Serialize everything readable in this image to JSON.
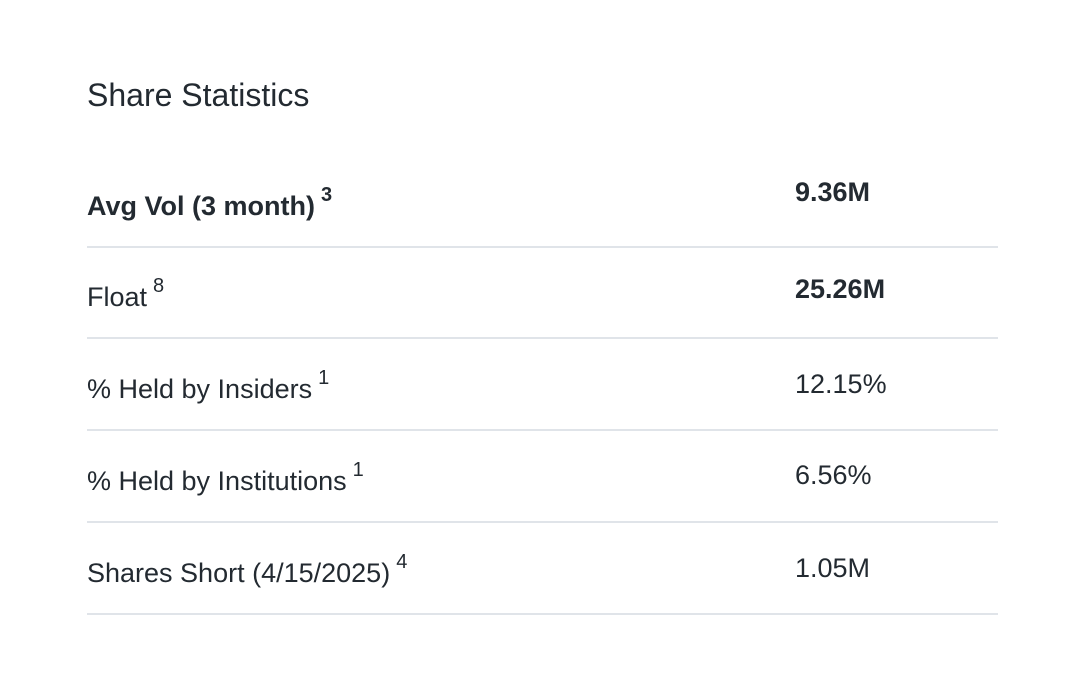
{
  "section_title": "Share Statistics",
  "rows": [
    {
      "label": "Avg Vol (3 month)",
      "footnote": "3",
      "value": "9.36M"
    },
    {
      "label": "Float",
      "footnote": "8",
      "value": "25.26M"
    },
    {
      "label": "% Held by Insiders",
      "footnote": "1",
      "value": "12.15%"
    },
    {
      "label": "% Held by Institutions",
      "footnote": "1",
      "value": "6.56%"
    },
    {
      "label": "Shares Short (4/15/2025)",
      "footnote": "4",
      "value": "1.05M"
    }
  ]
}
